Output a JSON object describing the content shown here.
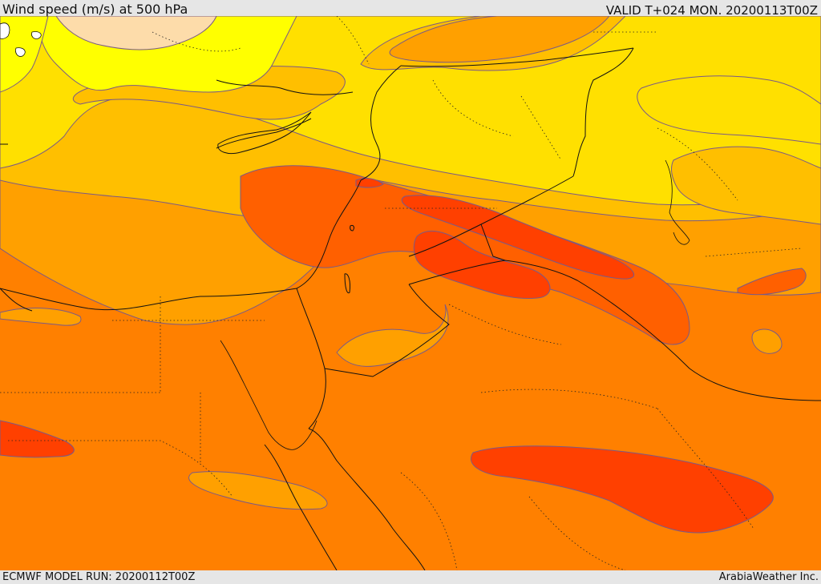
{
  "header": {
    "title": "Wind speed (m/s) at 500 hPa",
    "valid_time": "VALID T+024 MON. 20200113T00Z"
  },
  "footer": {
    "model_run": "ECMWF MODEL RUN: 20200112T00Z",
    "credit": "ArabiaWeather Inc."
  },
  "map": {
    "field": "wind speed",
    "level": "500 hPa",
    "colors": {
      "band_pale": "#fddcaa",
      "band_yellow_bright": "#ffff00",
      "band_yellow": "#ffe000",
      "band_gold": "#ffbf00",
      "band_orange_light": "#ffa000",
      "band_orange": "#ff8000",
      "band_orange_dark": "#ff6000",
      "band_red_orange": "#ff4000",
      "contour_line": "#7a5a87",
      "border_line": "#111111"
    }
  }
}
